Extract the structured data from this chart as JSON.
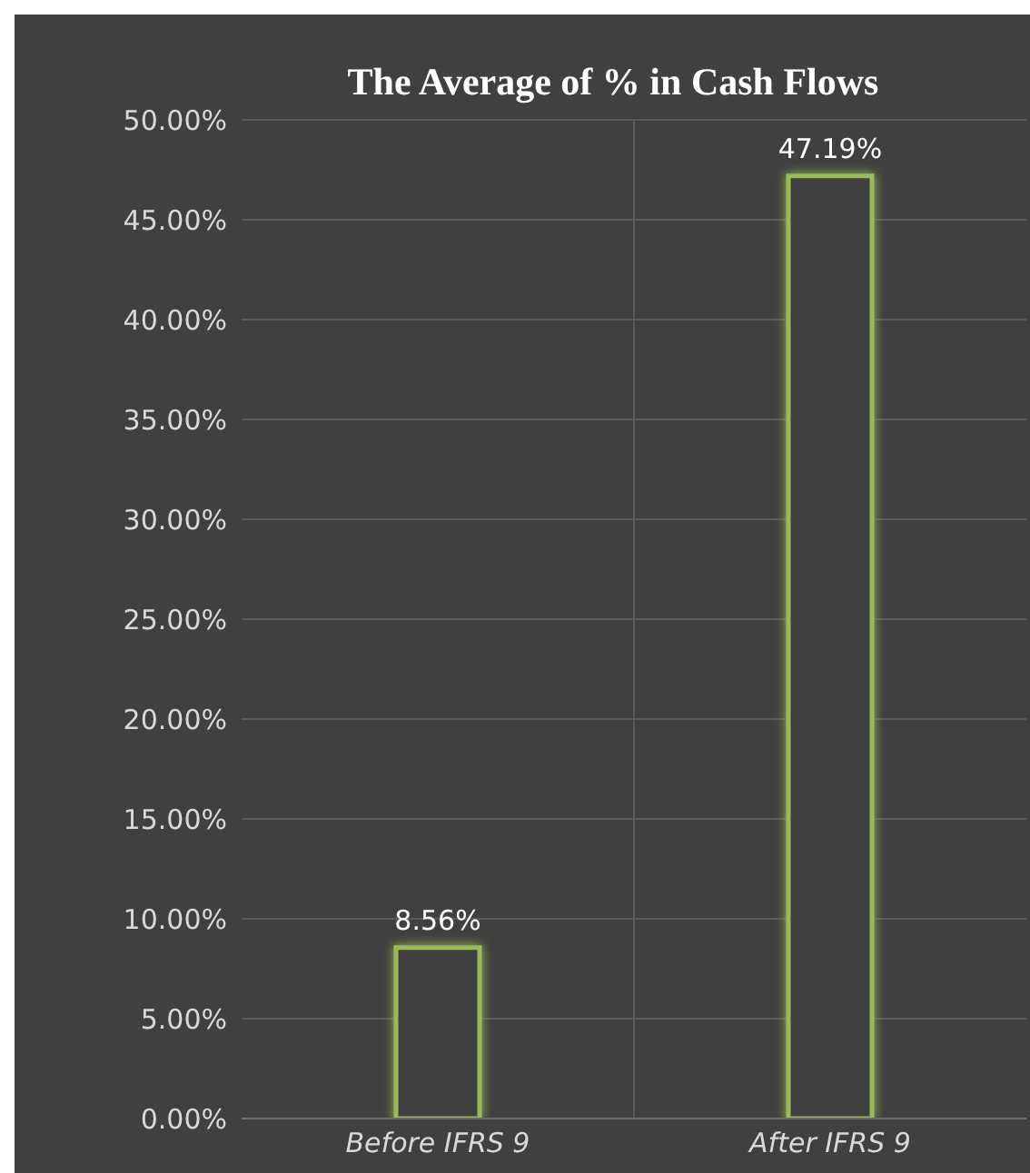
{
  "chart_data": {
    "type": "bar",
    "title": "The Average of % in Cash Flows",
    "categories": [
      "Before IFRS 9",
      "After IFRS 9"
    ],
    "values": [
      8.56,
      47.19
    ],
    "color": "#9bbb59",
    "value_labels": [
      "8.56%",
      "47.19%"
    ],
    "ylim": [
      0,
      50
    ],
    "yticks": [
      {
        "value": 0,
        "label": "0.00%"
      },
      {
        "value": 5,
        "label": "5.00%"
      },
      {
        "value": 10,
        "label": "10.00%"
      },
      {
        "value": 15,
        "label": "15.00%"
      },
      {
        "value": 20,
        "label": "20.00%"
      },
      {
        "value": 25,
        "label": "25.00%"
      },
      {
        "value": 30,
        "label": "30.00%"
      },
      {
        "value": 35,
        "label": "35.00%"
      },
      {
        "value": 40,
        "label": "40.00%"
      },
      {
        "value": 45,
        "label": "45.00%"
      },
      {
        "value": 50,
        "label": "50.00%"
      }
    ],
    "grid": true
  }
}
